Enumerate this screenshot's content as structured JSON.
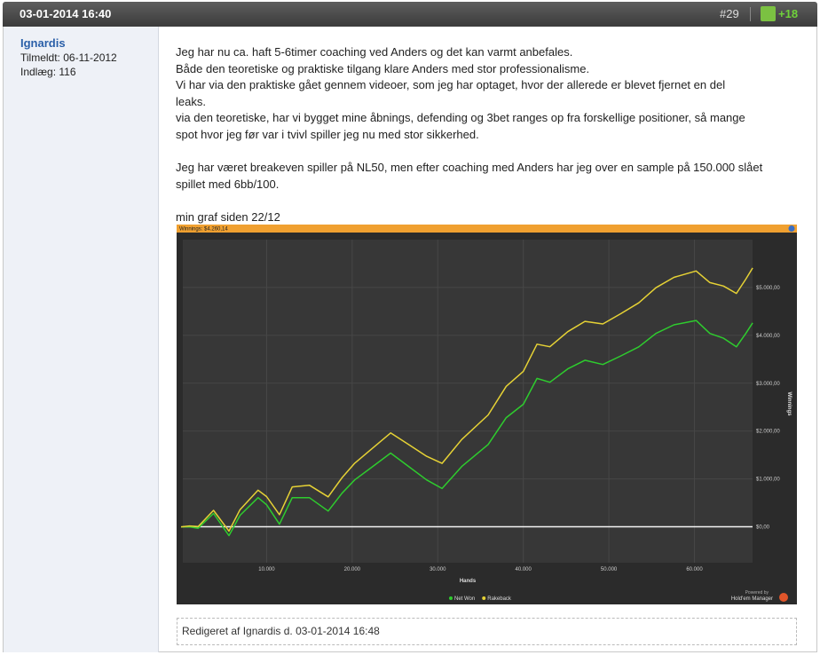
{
  "header": {
    "date": "03-01-2014 16:40",
    "post_number": "#29",
    "score": "+18"
  },
  "user": {
    "name": "Ignardis",
    "joined": "Tilmeldt: 06-11-2012",
    "posts": "Indlæg: 116"
  },
  "post": {
    "lines": [
      "Jeg har nu ca. haft 5-6timer coaching ved Anders og det kan varmt anbefales.",
      "Både den teoretiske og praktiske tilgang klare Anders med stor professionalisme.",
      "Vi har via den praktiske gået gennem videoer, som jeg har optaget, hvor der allerede er blevet fjernet en del",
      "leaks.",
      "via den teoretiske, har vi bygget mine åbnings, defending og 3bet ranges op fra forskellige positioner, så mange",
      "spot hvor jeg før var i tvivl spiller jeg nu med stor sikkerhed."
    ],
    "lines2": [
      "Jeg har været breakeven spiller på NL50, men efter coaching med Anders har jeg over en sample på 150.000 slået",
      "spillet med 6bb/100."
    ],
    "graph_caption": "min graf siden 22/12"
  },
  "chart_data": {
    "type": "line",
    "title": "Winnings: $4.260,14",
    "x_label": "Hands",
    "y_label": "Winnings",
    "x": [
      0,
      1000,
      2000,
      3800,
      5600,
      6900,
      9000,
      10000,
      11500,
      13000,
      15000,
      17200,
      18800,
      20300,
      22400,
      24500,
      26600,
      28700,
      30500,
      32800,
      35900,
      38000,
      40000,
      41600,
      43100,
      45200,
      47200,
      49300,
      51400,
      53500,
      55500,
      57600,
      60200,
      61800,
      63400,
      64900,
      66000,
      66800
    ],
    "series": [
      {
        "name": "Net Won",
        "color": "#2ecc2e",
        "values": [
          0,
          0,
          -30,
          280,
          -185,
          240,
          610,
          460,
          55,
          610,
          610,
          330,
          700,
          980,
          1260,
          1540,
          1260,
          980,
          800,
          1260,
          1720,
          2280,
          2560,
          3100,
          3020,
          3300,
          3480,
          3390,
          3570,
          3760,
          4040,
          4220,
          4310,
          4040,
          3940,
          3760,
          4040,
          4260
        ]
      },
      {
        "name": "Rakeback",
        "color": "#e6d235",
        "values": [
          0,
          17,
          4,
          345,
          -89,
          359,
          765,
          632,
          253,
          834,
          868,
          626,
          1023,
          1329,
          1645,
          1961,
          1718,
          1474,
          1325,
          1824,
          2337,
          2934,
          3248,
          3816,
          3761,
          4077,
          4292,
          4238,
          4454,
          4680,
          4995,
          5211,
          5345,
          5103,
          5030,
          4876,
          5175,
          5409
        ]
      }
    ],
    "xlim": [
      0,
      67000
    ],
    "xticks": [
      {
        "value": 10000,
        "label": "10.000"
      },
      {
        "value": 20000,
        "label": "20.000"
      },
      {
        "value": 30000,
        "label": "30.000"
      },
      {
        "value": 40000,
        "label": "40.000"
      },
      {
        "value": 50000,
        "label": "50.000"
      },
      {
        "value": 60000,
        "label": "60.000"
      }
    ],
    "ylim": [
      -750,
      6000
    ],
    "yticks": [
      {
        "value": 0,
        "label": "$0,00"
      },
      {
        "value": 1000,
        "label": "$1.000,00"
      },
      {
        "value": 2000,
        "label": "$2.000,00"
      },
      {
        "value": 3000,
        "label": "$3.000,00"
      },
      {
        "value": 4000,
        "label": "$4.000,00"
      },
      {
        "value": 5000,
        "label": "$5.000,00"
      }
    ],
    "grid": true,
    "legend": "bottom",
    "powered_by": "Powered by",
    "brand": "Hold'em Manager"
  },
  "edit_note": "Redigeret af Ignardis d. 03-01-2014 16:48"
}
